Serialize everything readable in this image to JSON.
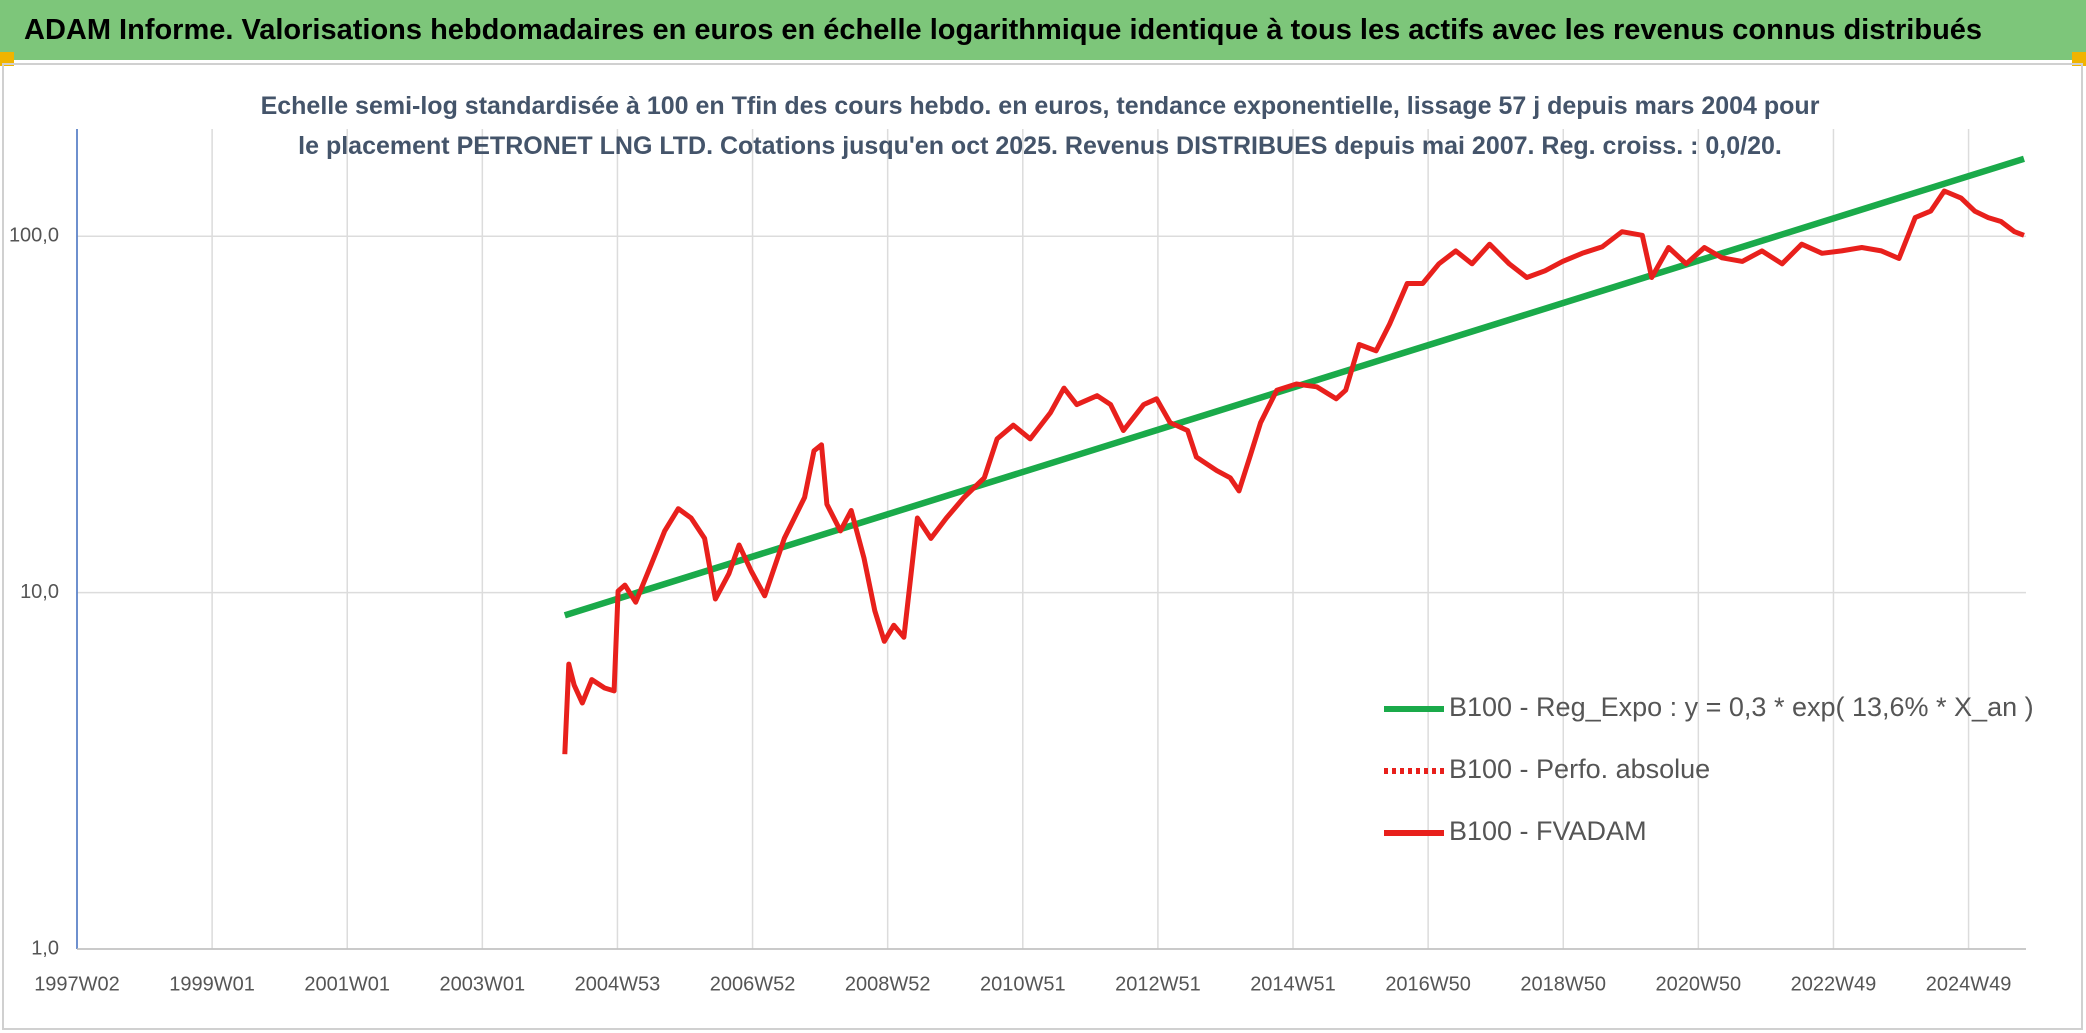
{
  "chart_data": {
    "type": "line",
    "title": "ADAM Informe. Valorisations hebdomadaires en euros en échelle logarithmique identique à tous les actifs avec les revenus connus distribués",
    "subtitle": "Echelle semi-log standardisée à 100 en Tfin des cours hebdo. en euros, tendance exponentielle, lissage 57 j depuis mars 2004 pour le placement PETRONET LNG LTD. Cotations jusqu'en oct 2025. Revenus DISTRIBUES depuis mai 2007. Reg. croiss. : 0,0/20.",
    "ylog": true,
    "grid": true,
    "legend": "right",
    "xlim": [
      1997.0,
      2025.85
    ],
    "xticks": [
      {
        "value": 1997.0,
        "label": "1997W02"
      },
      {
        "value": 1999.0,
        "label": "1999W01"
      },
      {
        "value": 2001.0,
        "label": "2001W01"
      },
      {
        "value": 2003.0,
        "label": "2003W01"
      },
      {
        "value": 2005.0,
        "label": "2004W53"
      },
      {
        "value": 2007.0,
        "label": "2006W52"
      },
      {
        "value": 2009.0,
        "label": "2008W52"
      },
      {
        "value": 2011.0,
        "label": "2010W51"
      },
      {
        "value": 2013.0,
        "label": "2012W51"
      },
      {
        "value": 2015.0,
        "label": "2014W51"
      },
      {
        "value": 2017.0,
        "label": "2016W50"
      },
      {
        "value": 2019.0,
        "label": "2018W50"
      },
      {
        "value": 2021.0,
        "label": "2020W50"
      },
      {
        "value": 2023.0,
        "label": "2022W49"
      },
      {
        "value": 2025.0,
        "label": "2024W49"
      }
    ],
    "ylim": [
      1,
      200
    ],
    "yticks": [
      {
        "value": 1,
        "label": "1,0"
      },
      {
        "value": 10,
        "label": "10,0"
      },
      {
        "value": 100,
        "label": "100,0"
      }
    ],
    "series": [
      {
        "name": "B100 - Reg_Expo : y = 0,3 * exp( 13,6% *  X_an )",
        "color": "#1aaa4a",
        "dash": "solid",
        "x": [
          2004.22,
          2025.82
        ],
        "values": [
          8.64,
          165
        ]
      },
      {
        "name": "B100 - Perfo. absolue",
        "color": "#e8201c",
        "dash": "dotted",
        "x": [],
        "values": []
      },
      {
        "name": "B100 - FVADAM",
        "color": "#e8201c",
        "dash": "solid",
        "x": [
          2004.22,
          2004.28,
          2004.36,
          2004.48,
          2004.62,
          2004.81,
          2004.95,
          2005.01,
          2005.11,
          2005.27,
          2005.5,
          2005.7,
          2005.9,
          2006.09,
          2006.29,
          2006.45,
          2006.65,
          2006.8,
          2006.98,
          2007.18,
          2007.47,
          2007.77,
          2007.91,
          2008.02,
          2008.1,
          2008.3,
          2008.46,
          2008.65,
          2008.81,
          2008.95,
          2009.09,
          2009.24,
          2009.44,
          2009.64,
          2009.87,
          2010.13,
          2010.43,
          2010.62,
          2010.86,
          2011.11,
          2011.41,
          2011.61,
          2011.8,
          2012.1,
          2012.3,
          2012.49,
          2012.79,
          2012.98,
          2013.18,
          2013.44,
          2013.57,
          2013.87,
          2014.07,
          2014.2,
          2014.36,
          2014.52,
          2014.76,
          2015.05,
          2015.35,
          2015.64,
          2015.78,
          2015.98,
          2016.23,
          2016.43,
          2016.69,
          2016.92,
          2017.16,
          2017.41,
          2017.65,
          2017.91,
          2018.2,
          2018.46,
          2018.73,
          2018.99,
          2019.28,
          2019.58,
          2019.87,
          2020.17,
          2020.31,
          2020.56,
          2020.82,
          2021.09,
          2021.35,
          2021.65,
          2021.94,
          2022.24,
          2022.53,
          2022.83,
          2023.12,
          2023.42,
          2023.71,
          2023.97,
          2024.21,
          2024.44,
          2024.64,
          2024.89,
          2025.09,
          2025.29,
          2025.48,
          2025.68,
          2025.82
        ],
        "values": [
          3.52,
          6.3,
          5.5,
          4.9,
          5.7,
          5.4,
          5.3,
          10.1,
          10.5,
          9.4,
          12,
          14.9,
          17.2,
          16.2,
          14.2,
          9.6,
          11.3,
          13.6,
          11.5,
          9.8,
          14.2,
          18.5,
          25,
          26,
          17.7,
          14.9,
          17,
          12.5,
          8.9,
          7.3,
          8.1,
          7.5,
          16.2,
          14.2,
          16.2,
          18.5,
          21,
          27,
          29.5,
          27,
          32,
          37.5,
          33.7,
          35.7,
          33.7,
          28.5,
          33.7,
          35,
          30,
          28.5,
          24,
          22,
          21,
          19.3,
          24,
          30,
          37,
          38.5,
          37.8,
          35,
          37,
          49.7,
          47.7,
          56.7,
          73.7,
          73.7,
          83.7,
          91,
          83.7,
          95,
          83.7,
          76.6,
          80,
          85,
          89.6,
          93.5,
          103,
          100.6,
          76.6,
          93,
          83.7,
          93,
          87,
          85,
          91,
          83.7,
          95,
          89.6,
          91,
          93,
          91,
          86.6,
          112.8,
          117.7,
          134,
          128,
          117.7,
          112.8,
          110,
          103,
          100.6
        ]
      }
    ]
  }
}
